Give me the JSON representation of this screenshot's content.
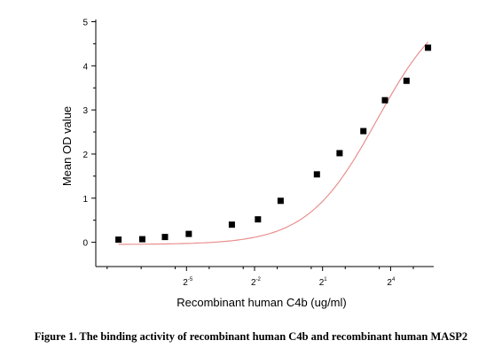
{
  "chart_data": {
    "type": "scatter",
    "xlabel": "Recombinant human  C4b  (ug/ml)",
    "ylabel": "Mean OD value",
    "x_scale": "log2",
    "xlim_log2": [
      -9.0,
      5.9
    ],
    "ylim": [
      -0.55,
      5.05
    ],
    "x_ticks": [
      {
        "log2": -5,
        "base": "2",
        "exp": "-5"
      },
      {
        "log2": -2,
        "base": "2",
        "exp": "-2"
      },
      {
        "log2": 1,
        "base": "2",
        "exp": "1"
      },
      {
        "log2": 4,
        "base": "2",
        "exp": "4"
      }
    ],
    "x_minor_ticks_log2": [
      -8.5,
      -7,
      -5.5,
      -4,
      -2.5,
      -1,
      0.5,
      2,
      3.5,
      5
    ],
    "y_ticks": [
      0,
      1,
      2,
      3,
      4,
      5
    ],
    "series": [
      {
        "marker": "square",
        "color": "#000000",
        "points": [
          {
            "x_log2": -8.0,
            "y": 0.06
          },
          {
            "x_log2": -6.95,
            "y": 0.07
          },
          {
            "x_log2": -5.95,
            "y": 0.12
          },
          {
            "x_log2": -4.9,
            "y": 0.19
          },
          {
            "x_log2": -3.0,
            "y": 0.4
          },
          {
            "x_log2": -1.85,
            "y": 0.52
          },
          {
            "x_log2": -0.85,
            "y": 0.94
          },
          {
            "x_log2": 0.75,
            "y": 1.54
          },
          {
            "x_log2": 1.75,
            "y": 2.02
          },
          {
            "x_log2": 2.8,
            "y": 2.52
          },
          {
            "x_log2": 3.75,
            "y": 3.22
          },
          {
            "x_log2": 4.7,
            "y": 3.66
          },
          {
            "x_log2": 5.65,
            "y": 4.41
          }
        ]
      }
    ],
    "fit_curve": {
      "color": "#e8908f",
      "model": "4PL in log2(x)",
      "bottom": -0.05,
      "top": 5.6,
      "midpoint_log2": 3.4,
      "slope": 0.42
    }
  },
  "caption": "Figure 1. The binding activity of recombinant human C4b and recombinant human MASP2"
}
